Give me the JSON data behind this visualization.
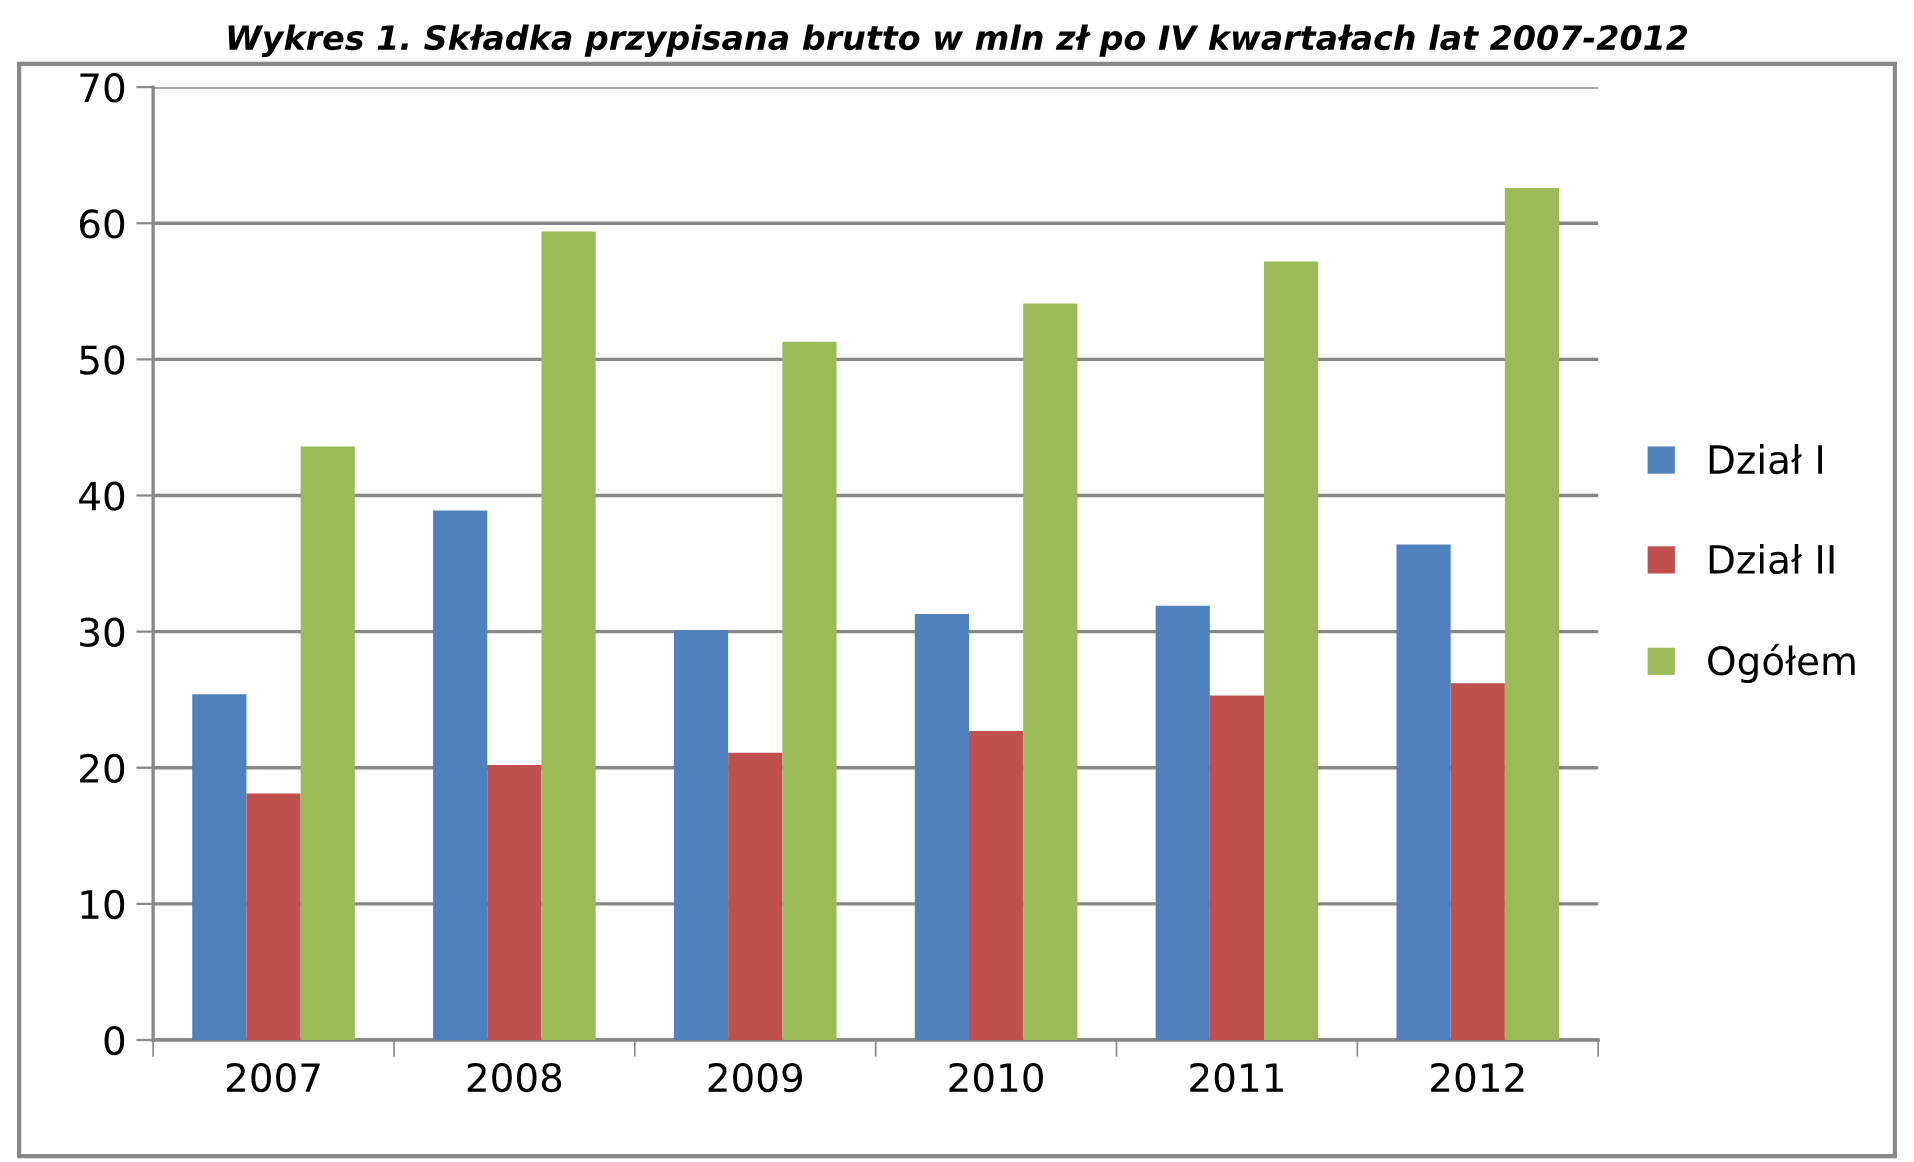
{
  "chart_data": {
    "type": "bar",
    "title": "Wykres 1. Składka przypisana brutto w mln zł po IV kwartałach lat 2007-2012",
    "categories": [
      "2007",
      "2008",
      "2009",
      "2010",
      "2011",
      "2012"
    ],
    "series": [
      {
        "name": "Dział I",
        "color": "#4f81bd",
        "values": [
          25.4,
          38.9,
          30.1,
          31.3,
          31.9,
          36.4
        ]
      },
      {
        "name": "Dział II",
        "color": "#c0504d",
        "values": [
          18.1,
          20.2,
          21.1,
          22.7,
          25.3,
          26.2
        ]
      },
      {
        "name": "Ogółem",
        "color": "#9bbb59",
        "values": [
          43.6,
          59.4,
          51.3,
          54.1,
          57.2,
          62.6
        ]
      }
    ],
    "ylim": [
      0,
      70
    ],
    "yticks": [
      0,
      10,
      20,
      30,
      40,
      50,
      60,
      70
    ],
    "grid": "y",
    "legend": "right"
  }
}
